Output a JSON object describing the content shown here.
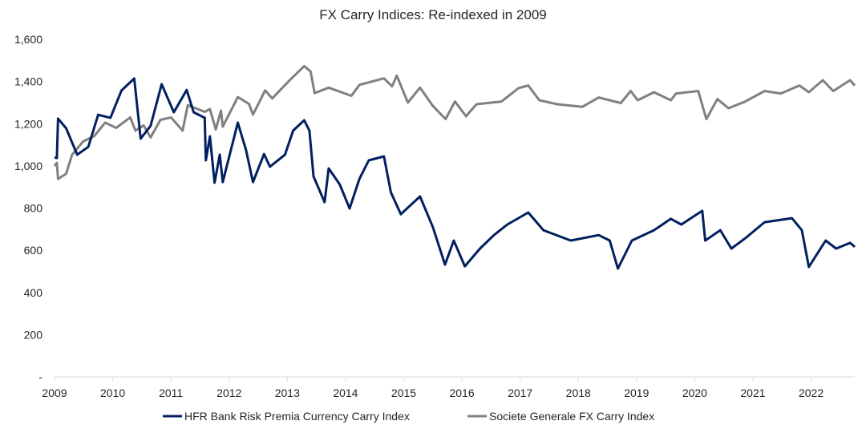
{
  "chart_data": {
    "type": "line",
    "title": "FX Carry Indices: Re-indexed in 2009",
    "xlabel": "",
    "ylabel": "",
    "xlim": [
      2009,
      2022.75
    ],
    "ylim": [
      0,
      1600
    ],
    "grid": false,
    "legend_position": "bottom",
    "x_ticks": [
      2009,
      2010,
      2011,
      2012,
      2013,
      2014,
      2015,
      2016,
      2017,
      2018,
      2019,
      2020,
      2021,
      2022
    ],
    "x_tick_labels": [
      "2009",
      "2010",
      "2011",
      "2012",
      "2013",
      "2014",
      "2015",
      "2016",
      "2017",
      "2018",
      "2019",
      "2020",
      "2021",
      "2022"
    ],
    "y_ticks": [
      0,
      200,
      400,
      600,
      800,
      1000,
      1200,
      1400,
      1600
    ],
    "y_tick_labels": [
      "-",
      "200",
      "400",
      "600",
      "800",
      "1,000",
      "1,200",
      "1,400",
      "1,600"
    ],
    "series": [
      {
        "name": "HFR Bank Risk Premia Currency Carry Index",
        "color": "#002060",
        "x": [
          2009.0,
          2009.04,
          2009.06,
          2009.2,
          2009.39,
          2009.58,
          2009.75,
          2009.96,
          2010.15,
          2010.37,
          2010.48,
          2010.65,
          2010.84,
          2011.05,
          2011.27,
          2011.39,
          2011.58,
          2011.6,
          2011.67,
          2011.75,
          2011.84,
          2011.89,
          2012.15,
          2012.29,
          2012.41,
          2012.6,
          2012.7,
          2012.96,
          2013.1,
          2013.29,
          2013.38,
          2013.45,
          2013.64,
          2013.71,
          2013.9,
          2014.07,
          2014.24,
          2014.4,
          2014.66,
          2014.78,
          2014.95,
          2015.28,
          2015.5,
          2015.71,
          2015.86,
          2016.05,
          2016.31,
          2016.55,
          2016.78,
          2017.14,
          2017.4,
          2017.87,
          2018.35,
          2018.54,
          2018.68,
          2018.92,
          2019.3,
          2019.59,
          2019.77,
          2020.13,
          2020.18,
          2020.44,
          2020.63,
          2020.87,
          2021.2,
          2021.67,
          2021.84,
          2021.96,
          2022.25,
          2022.43,
          2022.67,
          2022.75
        ],
        "values": [
          1040,
          1037,
          1224,
          1178,
          1053,
          1090,
          1242,
          1228,
          1357,
          1414,
          1129,
          1190,
          1387,
          1254,
          1360,
          1254,
          1228,
          1026,
          1140,
          920,
          1053,
          923,
          1205,
          1075,
          923,
          1056,
          996,
          1053,
          1167,
          1216,
          1167,
          950,
          828,
          988,
          912,
          798,
          939,
          1026,
          1045,
          874,
          771,
          855,
          710,
          532,
          646,
          524,
          608,
          672,
          722,
          779,
          695,
          646,
          672,
          646,
          513,
          646,
          695,
          749,
          722,
          787,
          646,
          695,
          608,
          657,
          733,
          752,
          695,
          521,
          646,
          608,
          635,
          616
        ]
      },
      {
        "name": "Societe Generale FX Carry Index",
        "color": "#808080",
        "x": [
          2009.0,
          2009.04,
          2009.06,
          2009.2,
          2009.3,
          2009.49,
          2009.68,
          2009.87,
          2010.06,
          2010.3,
          2010.39,
          2010.53,
          2010.65,
          2010.82,
          2011.0,
          2011.2,
          2011.29,
          2011.58,
          2011.67,
          2011.77,
          2011.86,
          2011.89,
          2012.15,
          2012.34,
          2012.41,
          2012.62,
          2012.74,
          2013.05,
          2013.29,
          2013.4,
          2013.47,
          2013.71,
          2014.1,
          2014.24,
          2014.66,
          2014.8,
          2014.88,
          2015.07,
          2015.28,
          2015.5,
          2015.72,
          2015.88,
          2016.07,
          2016.25,
          2016.68,
          2016.97,
          2017.14,
          2017.33,
          2017.64,
          2018.07,
          2018.35,
          2018.73,
          2018.9,
          2019.02,
          2019.3,
          2019.59,
          2019.68,
          2020.06,
          2020.2,
          2020.39,
          2020.58,
          2020.87,
          2021.2,
          2021.48,
          2021.8,
          2021.96,
          2022.2,
          2022.38,
          2022.67,
          2022.75
        ],
        "values": [
          1000,
          1014,
          938,
          963,
          1052,
          1116,
          1141,
          1205,
          1180,
          1230,
          1167,
          1192,
          1135,
          1218,
          1230,
          1167,
          1288,
          1256,
          1269,
          1173,
          1262,
          1186,
          1326,
          1294,
          1243,
          1358,
          1320,
          1409,
          1473,
          1447,
          1345,
          1371,
          1332,
          1384,
          1415,
          1377,
          1428,
          1300,
          1371,
          1284,
          1222,
          1305,
          1235,
          1292,
          1305,
          1368,
          1381,
          1311,
          1292,
          1280,
          1324,
          1298,
          1355,
          1311,
          1349,
          1311,
          1343,
          1355,
          1222,
          1317,
          1273,
          1305,
          1355,
          1343,
          1381,
          1349,
          1406,
          1355,
          1406,
          1381
        ]
      }
    ]
  }
}
